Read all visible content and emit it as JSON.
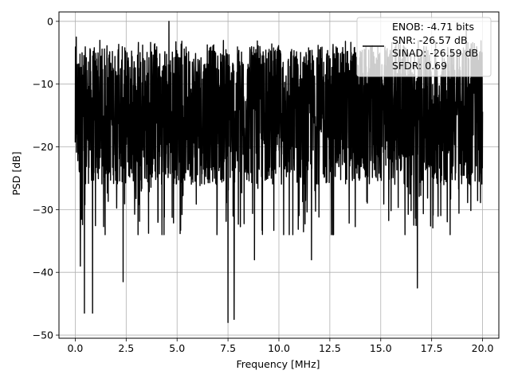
{
  "chart_data": {
    "type": "line",
    "title": "",
    "xlabel": "Frequency [MHz]",
    "ylabel": "PSD [dB]",
    "xlim": [
      -0.8,
      20.8
    ],
    "ylim": [
      -50.5,
      1.5
    ],
    "x_ticks": [
      0.0,
      2.5,
      5.0,
      7.5,
      10.0,
      12.5,
      15.0,
      17.5,
      20.0
    ],
    "x_tick_labels": [
      "0.0",
      "2.5",
      "5.0",
      "7.5",
      "10.0",
      "12.5",
      "15.0",
      "17.5",
      "20.0"
    ],
    "y_ticks": [
      0,
      -10,
      -20,
      -30,
      -40,
      -50
    ],
    "y_tick_labels": [
      "0",
      "−10",
      "−20",
      "−30",
      "−40",
      "−50"
    ],
    "grid": true,
    "legend_position": "top-right",
    "line_color": "#000000",
    "series": [
      {
        "name": "ENOB: -4.71 bits\nSNR: -26.57 dB\nSINAD: -26.59 dB\nSFDR: 0.69",
        "x_range": [
          0,
          20
        ],
        "baseline_db": -15,
        "notable_points": [
          {
            "x": 0.05,
            "y": -2.5
          },
          {
            "x": 0.25,
            "y": -39
          },
          {
            "x": 0.45,
            "y": -46.5
          },
          {
            "x": 0.85,
            "y": -46.5
          },
          {
            "x": 2.35,
            "y": -41.5
          },
          {
            "x": 4.6,
            "y": 0
          },
          {
            "x": 7.5,
            "y": -48
          },
          {
            "x": 7.8,
            "y": -47.5
          },
          {
            "x": 8.8,
            "y": -38
          },
          {
            "x": 11.6,
            "y": -38
          },
          {
            "x": 16.8,
            "y": -42.5
          },
          {
            "x": 19.2,
            "y": -1
          }
        ]
      }
    ],
    "legend_lines": [
      "ENOB: -4.71 bits",
      "SNR: -26.57 dB",
      "SINAD: -26.59 dB",
      "SFDR: 0.69"
    ]
  }
}
